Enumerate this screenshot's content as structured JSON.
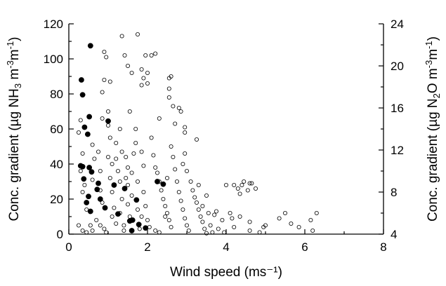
{
  "chart_data": {
    "type": "scatter",
    "title": "",
    "xlabel": "Wind speed (ms⁻¹)",
    "ylabel_left_parts": [
      "Conc. gradient (µg NH",
      "3",
      " m",
      "-3",
      "m",
      "-1",
      ")"
    ],
    "ylabel_right_parts": [
      "Conc. gradient (µg N",
      "2",
      "O m",
      "-3",
      "m",
      "-1",
      ")"
    ],
    "xlim": [
      0,
      8
    ],
    "ylim_left": [
      0,
      120
    ],
    "ylim_right": [
      4,
      24
    ],
    "xticks": [
      0,
      2,
      4,
      6,
      8
    ],
    "xtick_labels": [
      "0",
      "2",
      "4",
      "6",
      "8"
    ],
    "yticks_left": [
      0,
      20,
      40,
      60,
      80,
      100,
      120
    ],
    "ytick_labels_left": [
      "0",
      "20",
      "40",
      "60",
      "80",
      "100",
      "120"
    ],
    "yticks_right": [
      4,
      8,
      12,
      16,
      20,
      24
    ],
    "ytick_labels_right": [
      "4",
      "8",
      "12",
      "16",
      "20",
      "24"
    ],
    "grid": false,
    "series": [
      {
        "marker": "filled-circle",
        "axis": "left",
        "points": [
          [
            0.35,
            38.5
          ],
          [
            0.3,
            39
          ],
          [
            0.38,
            31.5
          ],
          [
            0.32,
            88
          ],
          [
            0.35,
            79.5
          ],
          [
            0.4,
            61
          ],
          [
            0.48,
            57
          ],
          [
            0.55,
            107.5
          ],
          [
            0.52,
            67
          ],
          [
            0.52,
            38
          ],
          [
            0.58,
            35.5
          ],
          [
            0.5,
            21.5
          ],
          [
            0.45,
            18
          ],
          [
            0.55,
            13
          ],
          [
            0.75,
            29
          ],
          [
            0.72,
            25.5
          ],
          [
            0.8,
            20
          ],
          [
            0.92,
            15
          ],
          [
            1.0,
            64.5
          ],
          [
            1.15,
            28
          ],
          [
            1.25,
            11.5
          ],
          [
            1.42,
            26
          ],
          [
            1.55,
            7.5
          ],
          [
            1.62,
            8
          ],
          [
            1.72,
            19.5
          ],
          [
            1.78,
            5.5
          ],
          [
            1.95,
            3.5
          ],
          [
            1.6,
            2
          ],
          [
            2.25,
            30
          ],
          [
            2.4,
            28.5
          ]
        ]
      },
      {
        "marker": "open-circle",
        "axis": "left",
        "points": [
          [
            0.25,
            58
          ],
          [
            0.3,
            65
          ],
          [
            0.35,
            46
          ],
          [
            0.3,
            36
          ],
          [
            0.35,
            24
          ],
          [
            0.4,
            28
          ],
          [
            0.25,
            5
          ],
          [
            0.35,
            2
          ],
          [
            0.45,
            1
          ],
          [
            0.6,
            2
          ],
          [
            0.55,
            5
          ],
          [
            0.7,
            8
          ],
          [
            0.45,
            14
          ],
          [
            0.6,
            31
          ],
          [
            0.65,
            43
          ],
          [
            0.6,
            51
          ],
          [
            0.75,
            47
          ],
          [
            0.8,
            36
          ],
          [
            0.8,
            25
          ],
          [
            0.85,
            18
          ],
          [
            0.8,
            5
          ],
          [
            0.9,
            3
          ],
          [
            0.95,
            1
          ],
          [
            0.85,
            66
          ],
          [
            0.85,
            81
          ],
          [
            0.9,
            104
          ],
          [
            0.95,
            101
          ],
          [
            0.9,
            88
          ],
          [
            1.0,
            70
          ],
          [
            1.05,
            87
          ],
          [
            1.0,
            62
          ],
          [
            1.05,
            55
          ],
          [
            1.0,
            44
          ],
          [
            1.1,
            40
          ],
          [
            1.05,
            32
          ],
          [
            1.1,
            24
          ],
          [
            1.1,
            10
          ],
          [
            1.2,
            6
          ],
          [
            1.15,
            15
          ],
          [
            1.2,
            43
          ],
          [
            1.25,
            36
          ],
          [
            1.2,
            52
          ],
          [
            1.3,
            60
          ],
          [
            1.35,
            47
          ],
          [
            1.3,
            30
          ],
          [
            1.35,
            20
          ],
          [
            1.3,
            12
          ],
          [
            1.4,
            5
          ],
          [
            1.4,
            2
          ],
          [
            1.45,
            32
          ],
          [
            1.45,
            44
          ],
          [
            1.5,
            38
          ],
          [
            1.5,
            28
          ],
          [
            1.5,
            17
          ],
          [
            1.55,
            10
          ],
          [
            1.6,
            22
          ],
          [
            1.6,
            35
          ],
          [
            1.65,
            46
          ],
          [
            1.7,
            60
          ],
          [
            1.7,
            52
          ],
          [
            1.75,
            30
          ],
          [
            1.75,
            14
          ],
          [
            1.8,
            3
          ],
          [
            1.85,
            47
          ],
          [
            1.85,
            10
          ],
          [
            1.9,
            39
          ],
          [
            1.9,
            24
          ],
          [
            1.95,
            16
          ],
          [
            2.0,
            8
          ],
          [
            2.05,
            4
          ],
          [
            1.35,
            113
          ],
          [
            1.42,
            102
          ],
          [
            1.5,
            96
          ],
          [
            1.6,
            92
          ],
          [
            1.55,
            70
          ],
          [
            1.75,
            114
          ],
          [
            1.85,
            94
          ],
          [
            1.85,
            85
          ],
          [
            1.95,
            102
          ],
          [
            1.9,
            89
          ],
          [
            2.0,
            92
          ],
          [
            2.0,
            86
          ],
          [
            2.1,
            102
          ],
          [
            2.2,
            103
          ],
          [
            2.55,
            89
          ],
          [
            2.55,
            83
          ],
          [
            2.6,
            90
          ],
          [
            2.55,
            78
          ],
          [
            2.65,
            73
          ],
          [
            2.7,
            63
          ],
          [
            2.8,
            72
          ],
          [
            2.85,
            70
          ],
          [
            2.95,
            58
          ],
          [
            2.95,
            61
          ],
          [
            2.3,
            66
          ],
          [
            2.1,
            55
          ],
          [
            2.15,
            45
          ],
          [
            2.2,
            38
          ],
          [
            2.25,
            35
          ],
          [
            2.3,
            30
          ],
          [
            2.35,
            25
          ],
          [
            2.4,
            20
          ],
          [
            2.45,
            16
          ],
          [
            2.5,
            12
          ],
          [
            2.55,
            8
          ],
          [
            2.6,
            4
          ],
          [
            2.2,
            2
          ],
          [
            2.3,
            1
          ],
          [
            2.45,
            10
          ],
          [
            2.5,
            32
          ],
          [
            2.6,
            50
          ],
          [
            2.65,
            44
          ],
          [
            2.7,
            37
          ],
          [
            2.75,
            30
          ],
          [
            2.8,
            24
          ],
          [
            2.85,
            19
          ],
          [
            2.9,
            14
          ],
          [
            2.95,
            9
          ],
          [
            3.0,
            5
          ],
          [
            3.05,
            2
          ],
          [
            2.9,
            40
          ],
          [
            2.95,
            46
          ],
          [
            3.0,
            36
          ],
          [
            3.1,
            30
          ],
          [
            3.15,
            25
          ],
          [
            3.2,
            21
          ],
          [
            3.25,
            18
          ],
          [
            3.3,
            14
          ],
          [
            3.35,
            10
          ],
          [
            3.4,
            7
          ],
          [
            3.45,
            3
          ],
          [
            3.25,
            54
          ],
          [
            3.3,
            28
          ],
          [
            3.4,
            16
          ],
          [
            3.5,
            22
          ],
          [
            3.55,
            12
          ],
          [
            3.6,
            5
          ],
          [
            3.7,
            11
          ],
          [
            3.75,
            13
          ],
          [
            3.65,
            1
          ],
          [
            3.8,
            3
          ],
          [
            3.9,
            8
          ],
          [
            4.0,
            28
          ],
          [
            4.1,
            12
          ],
          [
            4.15,
            9
          ],
          [
            4.2,
            28
          ],
          [
            4.3,
            26
          ],
          [
            4.35,
            23
          ],
          [
            4.4,
            28
          ],
          [
            4.45,
            30
          ],
          [
            4.55,
            25
          ],
          [
            4.6,
            29
          ],
          [
            4.65,
            29
          ],
          [
            4.75,
            26
          ],
          [
            4.6,
            7
          ],
          [
            4.6,
            2
          ],
          [
            4.85,
            1
          ],
          [
            4.95,
            4
          ],
          [
            5.0,
            5
          ],
          [
            4.35,
            10
          ],
          [
            4.2,
            4
          ],
          [
            5.35,
            9
          ],
          [
            5.5,
            12
          ],
          [
            5.65,
            6
          ],
          [
            5.85,
            4
          ],
          [
            6.15,
            8
          ],
          [
            6.2,
            2
          ],
          [
            6.3,
            12
          ],
          [
            3.95,
            1
          ],
          [
            3.5,
            0.5
          ]
        ]
      }
    ]
  }
}
